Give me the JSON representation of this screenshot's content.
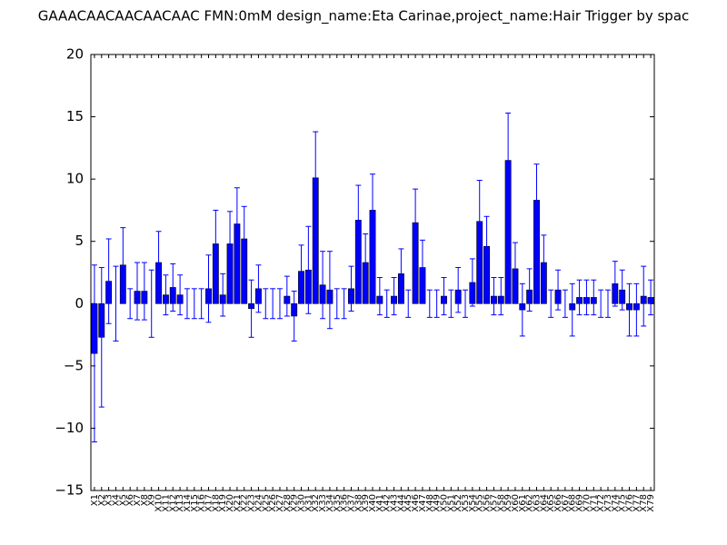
{
  "chart_data": {
    "type": "bar",
    "title": "GAAACAACAACAACAAC  FMN:0mM  design_name:Eta Carinae,project_name:Hair Trigger by spac",
    "categories": [
      "X1",
      "X2",
      "X3",
      "X4",
      "X5",
      "X6",
      "X7",
      "X8",
      "X9",
      "X10",
      "X11",
      "X12",
      "X13",
      "X14",
      "X15",
      "X16",
      "X17",
      "X18",
      "X19",
      "X20",
      "X21",
      "X22",
      "X23",
      "X24",
      "X25",
      "X26",
      "X27",
      "X28",
      "X29",
      "X30",
      "X31",
      "X32",
      "X33",
      "X34",
      "X35",
      "X36",
      "X37",
      "X38",
      "X39",
      "X40",
      "X41",
      "X42",
      "X43",
      "X44",
      "X45",
      "X46",
      "X47",
      "X48",
      "X49",
      "X50",
      "X51",
      "X52",
      "X53",
      "X54",
      "X55",
      "X56",
      "X57",
      "X58",
      "X59",
      "X60",
      "X61",
      "X62",
      "X63",
      "X64",
      "X65",
      "X66",
      "X67",
      "X68",
      "X69",
      "X70",
      "X71",
      "X72",
      "X73",
      "X74",
      "X75",
      "X76",
      "X77",
      "X78",
      "X79"
    ],
    "series": [
      {
        "color": "#0000ff",
        "values": [
          -4.0,
          -2.7,
          1.8,
          0,
          3.1,
          0,
          1.0,
          1.0,
          0,
          3.3,
          0.7,
          1.3,
          0.7,
          0,
          0,
          0,
          1.2,
          4.8,
          0.7,
          4.8,
          6.4,
          5.2,
          -0.4,
          1.2,
          0,
          0,
          0,
          0.6,
          -1.0,
          2.6,
          2.7,
          10.1,
          1.5,
          1.1,
          0,
          0,
          1.2,
          6.7,
          3.3,
          7.5,
          0.6,
          0,
          0.6,
          2.4,
          0,
          6.5,
          2.9,
          0,
          0,
          0.6,
          0,
          1.1,
          0,
          1.7,
          6.6,
          4.6,
          0.6,
          0.6,
          11.5,
          2.8,
          -0.5,
          1.1,
          8.3,
          3.3,
          0,
          1.1,
          0,
          -0.5,
          0.5,
          0.5,
          0.5,
          0,
          0,
          1.6,
          1.1,
          -0.5,
          -0.5,
          0.6,
          0.5
        ],
        "errors": [
          7.1,
          5.6,
          3.4,
          3.0,
          3.0,
          1.2,
          2.3,
          2.3,
          2.7,
          2.5,
          1.6,
          1.9,
          1.6,
          1.2,
          1.2,
          1.2,
          2.7,
          2.7,
          1.7,
          2.6,
          2.9,
          2.6,
          2.3,
          1.9,
          1.2,
          1.2,
          1.2,
          1.6,
          2.0,
          2.1,
          3.5,
          3.7,
          2.7,
          3.1,
          1.2,
          1.2,
          1.8,
          2.8,
          2.3,
          2.9,
          1.5,
          1.1,
          1.5,
          2.0,
          1.1,
          2.7,
          2.2,
          1.1,
          1.1,
          1.5,
          1.1,
          1.8,
          1.1,
          1.9,
          3.3,
          2.4,
          1.5,
          1.5,
          3.8,
          2.1,
          2.1,
          1.7,
          2.9,
          2.2,
          1.1,
          1.6,
          1.1,
          2.1,
          1.4,
          1.4,
          1.4,
          1.1,
          1.1,
          1.8,
          1.6,
          2.1,
          2.1,
          2.4,
          1.4
        ]
      }
    ],
    "ylim": [
      -15,
      20
    ],
    "yticks": [
      {
        "value": -15,
        "label": "−15"
      },
      {
        "value": -10,
        "label": "−10"
      },
      {
        "value": -5,
        "label": "−5"
      },
      0,
      5,
      10,
      15,
      20
    ]
  }
}
